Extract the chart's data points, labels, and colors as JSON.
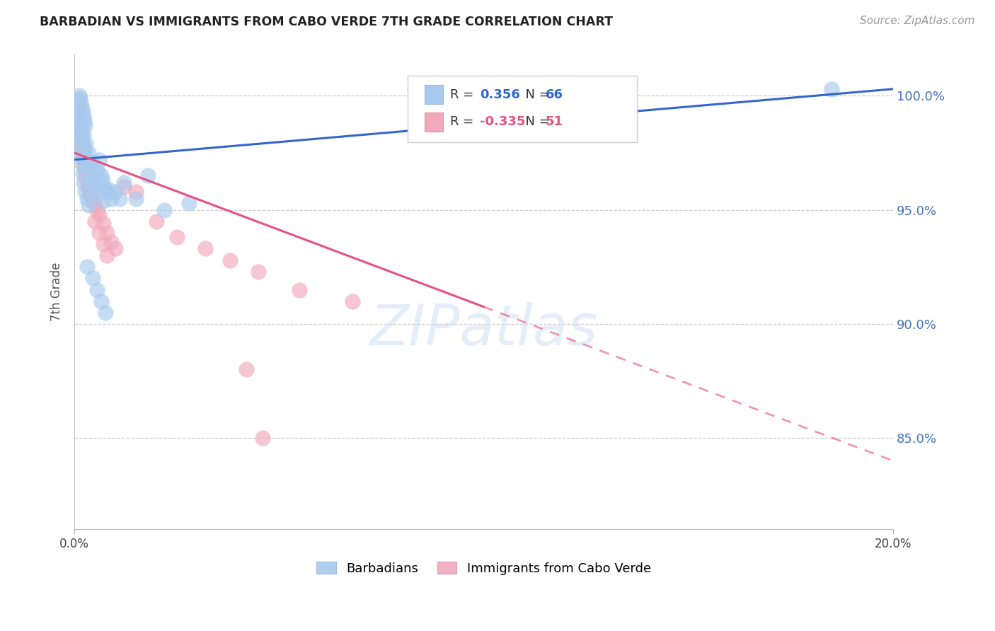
{
  "title": "BARBADIAN VS IMMIGRANTS FROM CABO VERDE 7TH GRADE CORRELATION CHART",
  "source": "Source: ZipAtlas.com",
  "ylabel": "7th Grade",
  "ytick_labels": [
    "85.0%",
    "90.0%",
    "95.0%",
    "100.0%"
  ],
  "ytick_values": [
    85.0,
    90.0,
    95.0,
    100.0
  ],
  "xmin": 0.0,
  "xmax": 20.0,
  "ymin": 81.0,
  "ymax": 101.8,
  "blue_color": "#A8CAEE",
  "pink_color": "#F2AABB",
  "trend_blue_color": "#3366CC",
  "trend_pink_color": "#E85080",
  "watermark": "ZIPatlas",
  "legend_r_blue": "0.356",
  "legend_n_blue": "66",
  "legend_r_pink": "-0.335",
  "legend_n_pink": "51",
  "blue_scatter_x": [
    0.08,
    0.1,
    0.12,
    0.14,
    0.16,
    0.18,
    0.2,
    0.22,
    0.24,
    0.26,
    0.1,
    0.12,
    0.15,
    0.17,
    0.19,
    0.21,
    0.23,
    0.25,
    0.27,
    0.3,
    0.35,
    0.4,
    0.45,
    0.5,
    0.55,
    0.6,
    0.65,
    0.7,
    0.8,
    0.9,
    0.1,
    0.12,
    0.14,
    0.16,
    0.18,
    0.2,
    0.22,
    0.25,
    0.3,
    0.35,
    0.4,
    0.5,
    0.6,
    0.7,
    1.0,
    1.2,
    1.5,
    1.8,
    2.2,
    2.8,
    0.15,
    0.18,
    0.22,
    0.28,
    0.34,
    0.42,
    0.55,
    0.68,
    0.85,
    1.1,
    0.3,
    0.45,
    0.55,
    0.65,
    0.75,
    18.5
  ],
  "blue_scatter_y": [
    99.6,
    99.8,
    100.0,
    99.9,
    99.7,
    99.5,
    99.3,
    99.1,
    98.9,
    98.7,
    99.2,
    98.8,
    98.5,
    98.3,
    98.1,
    97.9,
    97.7,
    97.5,
    97.3,
    97.0,
    96.8,
    96.5,
    96.2,
    96.0,
    96.8,
    97.2,
    96.5,
    96.0,
    95.8,
    95.5,
    98.6,
    98.2,
    97.8,
    97.4,
    97.0,
    96.6,
    96.2,
    95.8,
    95.5,
    95.2,
    96.3,
    96.0,
    95.7,
    95.4,
    95.8,
    96.2,
    95.5,
    96.5,
    95.0,
    95.3,
    99.0,
    98.7,
    98.3,
    97.9,
    97.5,
    97.1,
    96.7,
    96.3,
    95.9,
    95.5,
    92.5,
    92.0,
    91.5,
    91.0,
    90.5,
    100.3
  ],
  "pink_scatter_x": [
    0.08,
    0.1,
    0.12,
    0.14,
    0.16,
    0.18,
    0.2,
    0.22,
    0.25,
    0.28,
    0.1,
    0.13,
    0.16,
    0.19,
    0.22,
    0.25,
    0.28,
    0.32,
    0.36,
    0.4,
    0.45,
    0.5,
    0.55,
    0.6,
    0.7,
    0.8,
    0.9,
    1.0,
    1.2,
    1.5,
    0.12,
    0.15,
    0.18,
    0.22,
    0.26,
    0.3,
    0.35,
    0.4,
    0.5,
    0.6,
    0.7,
    0.8,
    2.0,
    2.5,
    3.2,
    3.8,
    4.5,
    5.5,
    4.2,
    6.8,
    4.6
  ],
  "pink_scatter_y": [
    99.3,
    99.0,
    98.7,
    98.4,
    98.1,
    97.8,
    97.5,
    97.2,
    96.9,
    96.6,
    98.8,
    98.4,
    98.0,
    97.6,
    97.2,
    96.8,
    96.4,
    96.0,
    95.8,
    95.6,
    95.4,
    95.2,
    95.0,
    94.8,
    94.4,
    94.0,
    93.6,
    93.3,
    96.0,
    95.8,
    98.5,
    98.1,
    97.7,
    97.3,
    96.9,
    96.5,
    96.1,
    95.7,
    94.5,
    94.0,
    93.5,
    93.0,
    94.5,
    93.8,
    93.3,
    92.8,
    92.3,
    91.5,
    88.0,
    91.0,
    85.0
  ],
  "pink_solid_xmax": 10.0
}
